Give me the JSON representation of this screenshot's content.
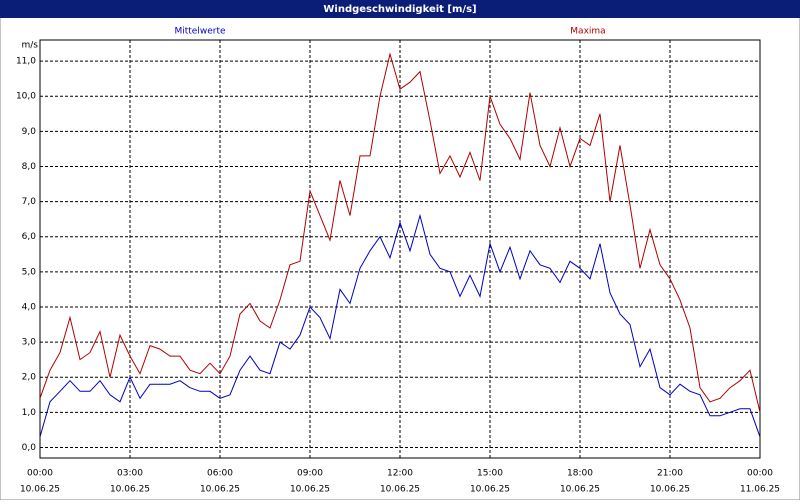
{
  "chart_data": {
    "type": "line",
    "title": "Windgeschwindigkeit [m/s]",
    "y_label": "m/s",
    "legend": "top",
    "grid": true,
    "x": [
      0,
      20,
      40,
      60,
      80,
      100,
      120,
      140,
      160,
      180,
      200,
      220,
      240,
      260,
      280,
      300,
      320,
      340,
      360,
      380,
      400,
      420,
      440,
      460,
      480,
      500,
      520,
      540,
      560,
      580,
      600,
      620,
      640,
      660,
      680,
      700,
      720,
      740,
      760,
      780,
      800,
      820,
      840,
      860,
      880,
      900,
      920,
      940,
      960,
      980,
      1000,
      1020,
      1040,
      1060,
      1080,
      1100,
      1120,
      1140,
      1160,
      1180,
      1200,
      1220,
      1240,
      1260,
      1280,
      1300,
      1320,
      1340,
      1360,
      1380,
      1400,
      1420,
      1440
    ],
    "xlim": [
      0,
      1440
    ],
    "xticks": [
      {
        "value": 0,
        "label": "00:00"
      },
      {
        "value": 180,
        "label": "03:00"
      },
      {
        "value": 360,
        "label": "06:00"
      },
      {
        "value": 540,
        "label": "09:00"
      },
      {
        "value": 720,
        "label": "12:00"
      },
      {
        "value": 900,
        "label": "15:00"
      },
      {
        "value": 1080,
        "label": "18:00"
      },
      {
        "value": 1260,
        "label": "21:00"
      },
      {
        "value": 1440,
        "label": "00:00"
      }
    ],
    "xtick_dates": [
      "10.06.25",
      "10.06.25",
      "10.06.25",
      "10.06.25",
      "10.06.25",
      "10.06.25",
      "10.06.25",
      "10.06.25",
      "11.06.25"
    ],
    "ylim": [
      -0.3,
      11.6
    ],
    "yticks": [
      {
        "value": 0,
        "label": "0,0"
      },
      {
        "value": 1,
        "label": "1,0"
      },
      {
        "value": 2,
        "label": "2,0"
      },
      {
        "value": 3,
        "label": "3,0"
      },
      {
        "value": 4,
        "label": "4,0"
      },
      {
        "value": 5,
        "label": "5,0"
      },
      {
        "value": 6,
        "label": "6,0"
      },
      {
        "value": 7,
        "label": "7,0"
      },
      {
        "value": 8,
        "label": "8,0"
      },
      {
        "value": 9,
        "label": "9,0"
      },
      {
        "value": 10,
        "label": "10,0"
      },
      {
        "value": 11,
        "label": "11,0"
      }
    ],
    "series": [
      {
        "name": "Mittelwerte",
        "color": "#0000c0",
        "values": [
          0.3,
          1.3,
          1.6,
          1.9,
          1.6,
          1.6,
          1.9,
          1.5,
          1.3,
          2.0,
          1.4,
          1.8,
          1.8,
          1.8,
          1.9,
          1.7,
          1.6,
          1.6,
          1.4,
          1.5,
          2.2,
          2.6,
          2.2,
          2.1,
          3.0,
          2.8,
          3.2,
          4.0,
          3.7,
          3.1,
          4.5,
          4.1,
          5.1,
          5.6,
          6.0,
          5.4,
          6.4,
          5.6,
          6.6,
          5.5,
          5.1,
          5.0,
          4.3,
          4.9,
          4.3,
          5.8,
          5.0,
          5.7,
          4.8,
          5.6,
          5.2,
          5.1,
          4.7,
          5.3,
          5.1,
          4.8,
          5.8,
          4.4,
          3.8,
          3.5,
          2.3,
          2.8,
          1.7,
          1.5,
          1.8,
          1.6,
          1.5,
          0.9,
          0.9,
          1.0,
          1.1,
          1.1,
          0.3
        ]
      },
      {
        "name": "Maxima",
        "color": "#b00000",
        "values": [
          1.4,
          2.2,
          2.7,
          3.7,
          2.5,
          2.7,
          3.3,
          2.0,
          3.2,
          2.6,
          2.1,
          2.9,
          2.8,
          2.6,
          2.6,
          2.2,
          2.1,
          2.4,
          2.1,
          2.6,
          3.8,
          4.1,
          3.6,
          3.4,
          4.2,
          5.2,
          5.3,
          7.3,
          6.6,
          5.9,
          7.6,
          6.6,
          8.3,
          8.3,
          10.0,
          11.2,
          10.2,
          10.4,
          10.7,
          9.3,
          7.8,
          8.3,
          7.7,
          8.4,
          7.6,
          10.0,
          9.2,
          8.8,
          8.2,
          10.1,
          8.6,
          8.0,
          9.1,
          8.0,
          8.8,
          8.6,
          9.5,
          7.0,
          8.6,
          6.9,
          5.1,
          6.2,
          5.2,
          4.8,
          4.2,
          3.4,
          1.7,
          1.3,
          1.4,
          1.7,
          1.9,
          2.2,
          1.0
        ]
      }
    ]
  }
}
